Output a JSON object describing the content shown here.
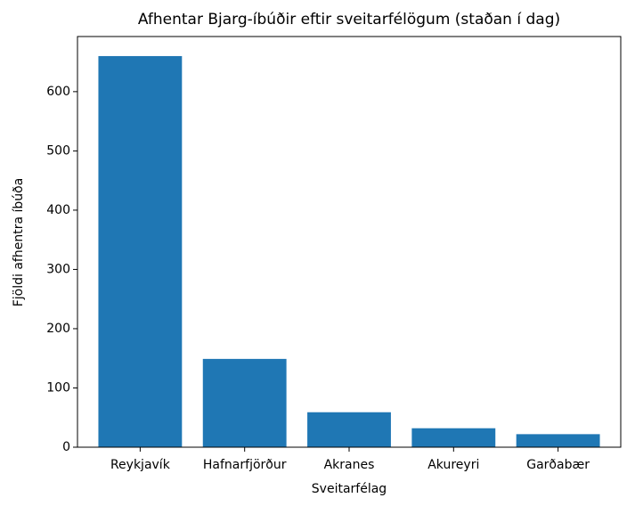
{
  "chart_data": {
    "type": "bar",
    "title": "Afhentar Bjarg-íbúðir eftir sveitarfélögum (staðan í dag)",
    "x_label": "Sveitarfélag",
    "y_label": "Fjöldi afhentra íbúða",
    "categories": [
      "Reykjavík",
      "Hafnarfjörður",
      "Akranes",
      "Akureyri",
      "Garðabær"
    ],
    "values": [
      660,
      149,
      59,
      32,
      22
    ],
    "color": "#1f77b4",
    "ylim": [
      0,
      693
    ],
    "yticks": [
      0,
      100,
      200,
      300,
      400,
      500,
      600
    ],
    "grid": false
  }
}
